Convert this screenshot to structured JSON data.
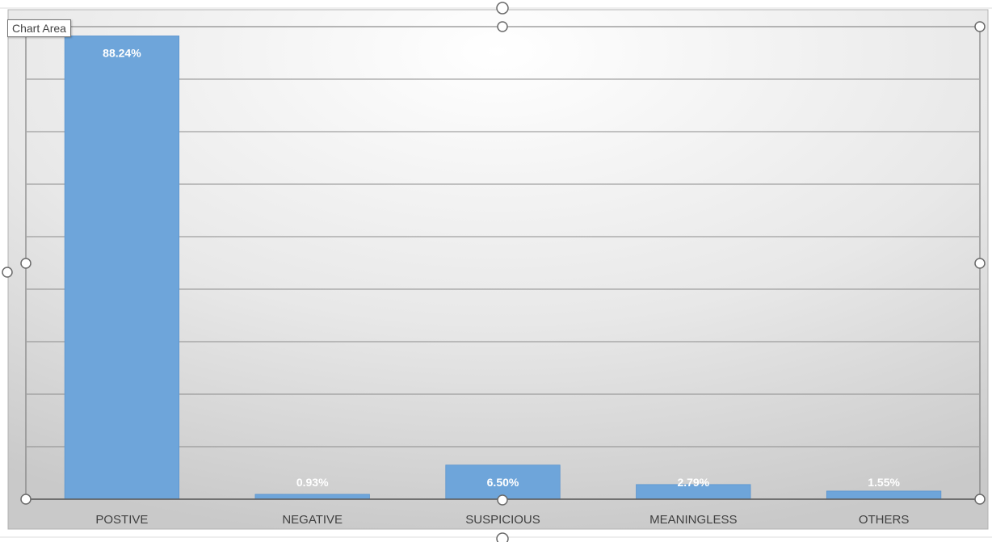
{
  "tooltip": {
    "text": "Chart Area"
  },
  "colors": {
    "bar": "#6ea5da",
    "bar_edge": "#5b95cf",
    "data_label": "#ffffff",
    "axis_label": "#404040",
    "gridline": "#8c8c8c",
    "selection_border": "#7f7f7f"
  },
  "chart_data": {
    "type": "bar",
    "title": "",
    "xlabel": "",
    "ylabel": "",
    "categories": [
      "POSTIVE",
      "NEGATIVE",
      "SUSPICIOUS",
      "MEANINGLESS",
      "OTHERS"
    ],
    "values": [
      88.24,
      0.93,
      6.5,
      2.79,
      1.55
    ],
    "data_labels": [
      "88.24%",
      "0.93%",
      "6.50%",
      "2.79%",
      "1.55%"
    ],
    "unit": "%",
    "ylim": [
      0,
      90
    ],
    "y_axis_visible": false,
    "grid": true,
    "legend": "none"
  }
}
